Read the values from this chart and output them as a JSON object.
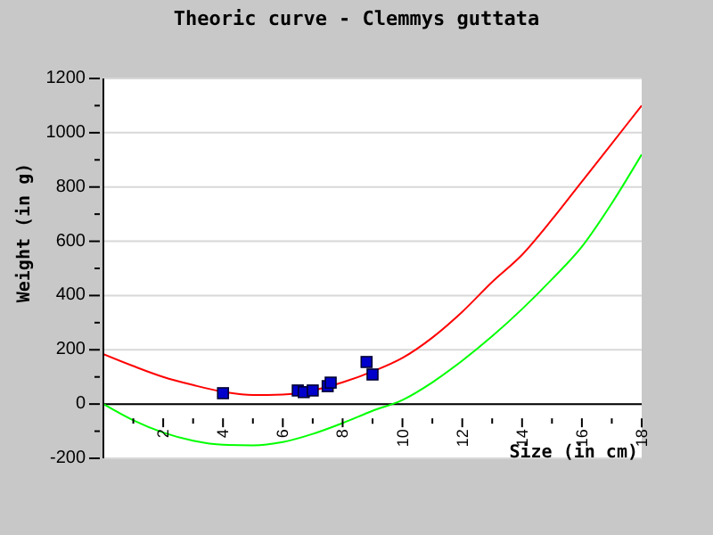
{
  "chart_data": {
    "type": "line",
    "title": "Theoric curve - Clemmys guttata",
    "xlabel": "Size (in cm)",
    "ylabel": "Weight (in g)",
    "xlim": [
      0,
      18
    ],
    "ylim": [
      -200,
      1200
    ],
    "xticks": [
      {
        "value": 1,
        "label": null
      },
      2,
      {
        "value": 3,
        "label": null
      },
      4,
      {
        "value": 5,
        "label": null
      },
      6,
      {
        "value": 7,
        "label": null
      },
      8,
      {
        "value": 9,
        "label": null
      },
      10,
      {
        "value": 11,
        "label": null
      },
      12,
      {
        "value": 13,
        "label": null
      },
      14,
      {
        "value": 15,
        "label": null
      },
      16,
      {
        "value": 17,
        "label": null
      },
      18
    ],
    "yticks": [
      -200,
      {
        "value": -100,
        "label": null
      },
      0,
      {
        "value": 100,
        "label": null
      },
      200,
      {
        "value": 300,
        "label": null
      },
      400,
      {
        "value": 500,
        "label": null
      },
      600,
      {
        "value": 700,
        "label": null
      },
      800,
      {
        "value": 900,
        "label": null
      },
      1000,
      {
        "value": 1100,
        "label": null
      },
      1200
    ],
    "grid": "y",
    "series": [
      {
        "color": "#ff0000",
        "marker": "none",
        "x": [
          0,
          1,
          2,
          3,
          4,
          5,
          6,
          7,
          8,
          9,
          10,
          11,
          12,
          13,
          14,
          15,
          16,
          17,
          18
        ],
        "values": [
          184,
          140,
          100,
          70,
          45,
          33,
          35,
          50,
          80,
          120,
          170,
          245,
          340,
          450,
          550,
          680,
          820,
          960,
          1100
        ]
      },
      {
        "color": "#00ff00",
        "marker": "none",
        "x": [
          0,
          1,
          2,
          3,
          4,
          5,
          6,
          7,
          8,
          9,
          10,
          11,
          12,
          13,
          14,
          15,
          16,
          17,
          18
        ],
        "values": [
          0,
          -60,
          -105,
          -135,
          -150,
          -152,
          -140,
          -110,
          -70,
          -25,
          15,
          80,
          160,
          250,
          350,
          460,
          580,
          740,
          920
        ]
      },
      {
        "type": "scatter",
        "color": "#0000cc",
        "marker": "square",
        "x": [
          4,
          6.5,
          6.7,
          7,
          7.5,
          7.6,
          8.8,
          9
        ],
        "values": [
          40,
          50,
          44,
          50,
          66,
          79,
          155,
          109
        ]
      }
    ]
  }
}
